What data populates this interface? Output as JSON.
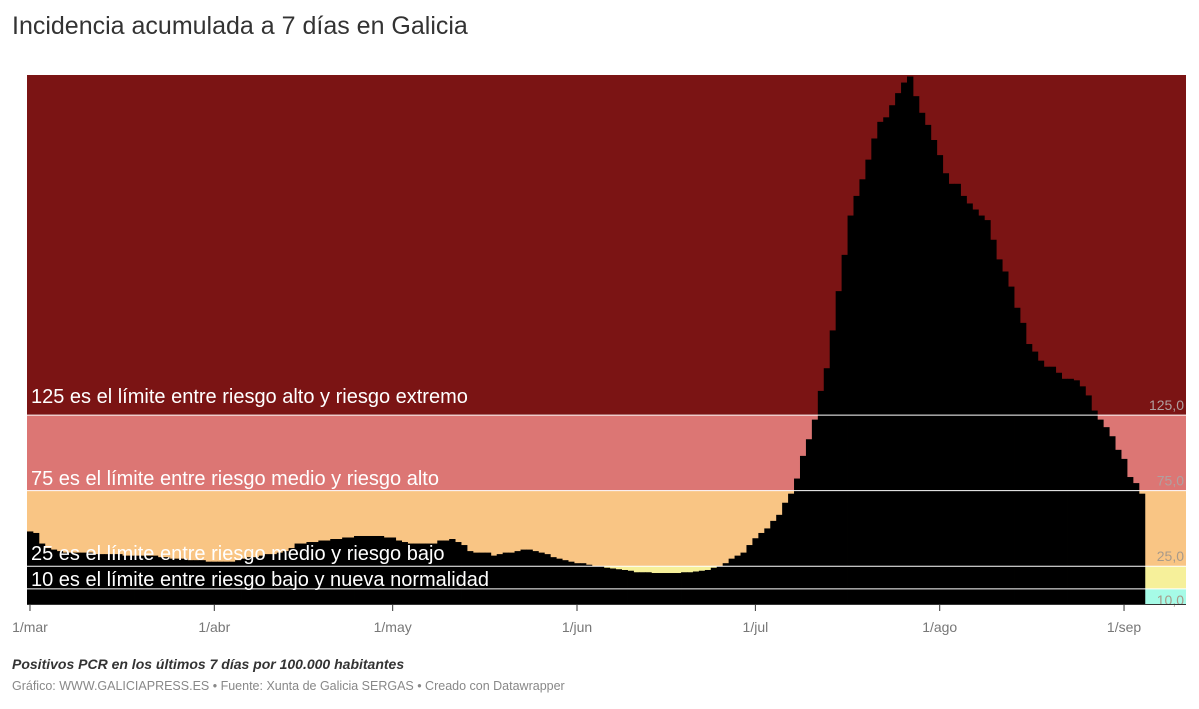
{
  "title": "Incidencia acumulada a 7 días en Galicia",
  "note": "Positivos PCR en los últimos 7 días por 100.000 habitantes",
  "credit": "Gráfico: WWW.GALICIAPRESS.ES • Fuente: Xunta de Galicia SERGAS • Creado con Datawrapper",
  "chart_data": {
    "type": "bar",
    "title": "Incidencia acumulada a 7 días en Galicia",
    "ylabel": "",
    "xlabel": "",
    "frequency": "daily",
    "first_date": "1/mar",
    "last_date": "4/sep",
    "ylim": [
      0,
      350
    ],
    "grid": false,
    "bar_color": "#000000",
    "x_ticks": [
      {
        "label": "1/mar",
        "day": 0
      },
      {
        "label": "1/abr",
        "day": 31
      },
      {
        "label": "1/may",
        "day": 61
      },
      {
        "label": "1/jun",
        "day": 92
      },
      {
        "label": "1/jul",
        "day": 122
      },
      {
        "label": "1/ago",
        "day": 153
      },
      {
        "label": "1/sep",
        "day": 184
      }
    ],
    "bands": [
      {
        "from": 125,
        "to": 350,
        "color": "#7b1414",
        "value_label": "125,0",
        "annotation": "125 es el límite entre riesgo alto y riesgo extremo"
      },
      {
        "from": 75,
        "to": 125,
        "color": "#dc7674",
        "value_label": "75,0",
        "annotation": "75 es el límite entre riesgo medio y riesgo alto"
      },
      {
        "from": 25,
        "to": 75,
        "color": "#f9c584",
        "value_label": "25,0",
        "annotation": "25 es el límite entre riesgo medio y riesgo bajo"
      },
      {
        "from": 10,
        "to": 25,
        "color": "#f6f09a",
        "value_label": "10,0",
        "annotation": "10 es el límite entre riesgo bajo y nueva normalidad"
      },
      {
        "from": 0,
        "to": 10,
        "color": "#a6fbe7",
        "value_label": "",
        "annotation": ""
      }
    ],
    "values": [
      48,
      47,
      40,
      37,
      36,
      35,
      34,
      34,
      34,
      34,
      34,
      33,
      33,
      33,
      33,
      33,
      32,
      32,
      32,
      32,
      32,
      32,
      31,
      31,
      30,
      30,
      30,
      29,
      29,
      29,
      28,
      28,
      28,
      28,
      28,
      29,
      30,
      31,
      31,
      32,
      33,
      33,
      34,
      35,
      37,
      40,
      40,
      41,
      41,
      42,
      42,
      43,
      43,
      44,
      44,
      45,
      45,
      45,
      45,
      45,
      44,
      44,
      42,
      41,
      40,
      40,
      40,
      40,
      40,
      42,
      42,
      43,
      41,
      39,
      35,
      34,
      34,
      34,
      32,
      33,
      34,
      34,
      35,
      36,
      36,
      35,
      34,
      33,
      31,
      30,
      29,
      28,
      27,
      27,
      26,
      25,
      25,
      24,
      23.5,
      23,
      22.5,
      22,
      21,
      21,
      21,
      20.5,
      20.5,
      20.5,
      20.5,
      20.5,
      21,
      21,
      21.5,
      22,
      22.5,
      24,
      25,
      27,
      30,
      32,
      34,
      39,
      43.5,
      47,
      50,
      55,
      59,
      67,
      73,
      83,
      98,
      109,
      122,
      141,
      156,
      181,
      207,
      231,
      257,
      270,
      281,
      294,
      308,
      319,
      322,
      330,
      338,
      345,
      349,
      336,
      325,
      317,
      307,
      297,
      285,
      278,
      278,
      270,
      265,
      261,
      257,
      254,
      241,
      228,
      220,
      210,
      196,
      186,
      172,
      167,
      161,
      157,
      157,
      153,
      149,
      149,
      148,
      144,
      138,
      128,
      122,
      117,
      111,
      102,
      96,
      84,
      80,
      73
    ]
  }
}
